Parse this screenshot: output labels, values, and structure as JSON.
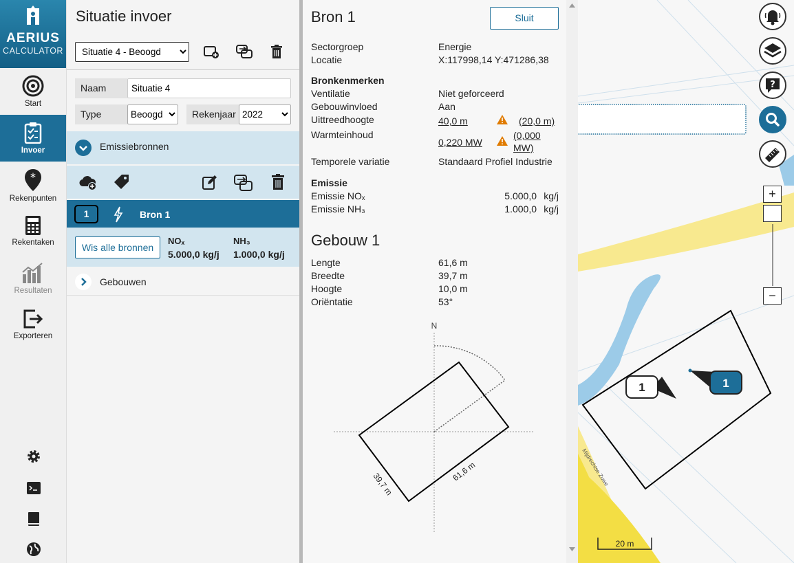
{
  "app": {
    "logo_line1": "AERIUS",
    "logo_line2": "CALCULATOR"
  },
  "nav": {
    "start": "Start",
    "invoer": "Invoer",
    "rekenpunten": "Rekenpunten",
    "rekentaken": "Rekentaken",
    "resultaten": "Resultaten",
    "exporteren": "Exporteren"
  },
  "situation": {
    "title": "Situatie invoer",
    "selected": "Situatie 4 - Beoogd",
    "naam_label": "Naam",
    "naam_value": "Situatie 4",
    "type_label": "Type",
    "type_value": "Beoogd",
    "rekenjaar_label": "Rekenjaar",
    "rekenjaar_value": "2022",
    "emissiebronnen": "Emissiebronnen",
    "bron_number": "1",
    "bron_name": "Bron 1",
    "wis_alle": "Wis alle bronnen",
    "nox_label": "NOₓ",
    "nox_value": "5.000,0 kg/j",
    "nh3_label": "NH₃",
    "nh3_value": "1.000,0 kg/j",
    "gebouwen": "Gebouwen"
  },
  "detail": {
    "title": "Bron 1",
    "close": "Sluit",
    "sectorgroep_label": "Sectorgroep",
    "sectorgroep_value": "Energie",
    "locatie_label": "Locatie",
    "locatie_value": "X:117998,14 Y:471286,38",
    "bronkenmerken": "Bronkenmerken",
    "ventilatie_label": "Ventilatie",
    "ventilatie_value": "Niet geforceerd",
    "gebouwinvloed_label": "Gebouwinvloed",
    "gebouwinvloed_value": "Aan",
    "uittreedhoogte_label": "Uittreedhoogte",
    "uittreedhoogte_value": "40,0 m",
    "uittreedhoogte_note": "(20,0 m)",
    "warmteinhoud_label": "Warmteinhoud",
    "warmteinhoud_value": "0,220 MW",
    "warmteinhoud_note1": "(0,000",
    "warmteinhoud_note2": "MW)",
    "temporele_label": "Temporele variatie",
    "temporele_value": "Standaard Profiel Industrie",
    "emissie": "Emissie",
    "emissie_nox_label": "Emissie NOₓ",
    "emissie_nox_value": "5.000,0",
    "emissie_nh3_label": "Emissie NH₃",
    "emissie_nh3_value": "1.000,0",
    "unit": "kg/j",
    "gebouw_title": "Gebouw 1",
    "lengte_label": "Lengte",
    "lengte_value": "61,6 m",
    "breedte_label": "Breedte",
    "breedte_value": "39,7 m",
    "hoogte_label": "Hoogte",
    "hoogte_value": "10,0 m",
    "orientatie_label": "Oriëntatie",
    "orientatie_value": "53°",
    "diagram_north": "N",
    "diagram_width_label": "39,7 m",
    "diagram_length_label": "61,6 m"
  },
  "map": {
    "street": "Mijdrechtse Zuwe",
    "label_left": "1",
    "label_right": "1",
    "scale": "20 m",
    "zoom_in": "+",
    "zoom_out": "−"
  },
  "colors": {
    "primary": "#1d6e98",
    "light_blue": "#d2e5ef",
    "warning": "#e07b00",
    "road_yellow": "#f8e98f",
    "water": "#9ccbe8"
  }
}
